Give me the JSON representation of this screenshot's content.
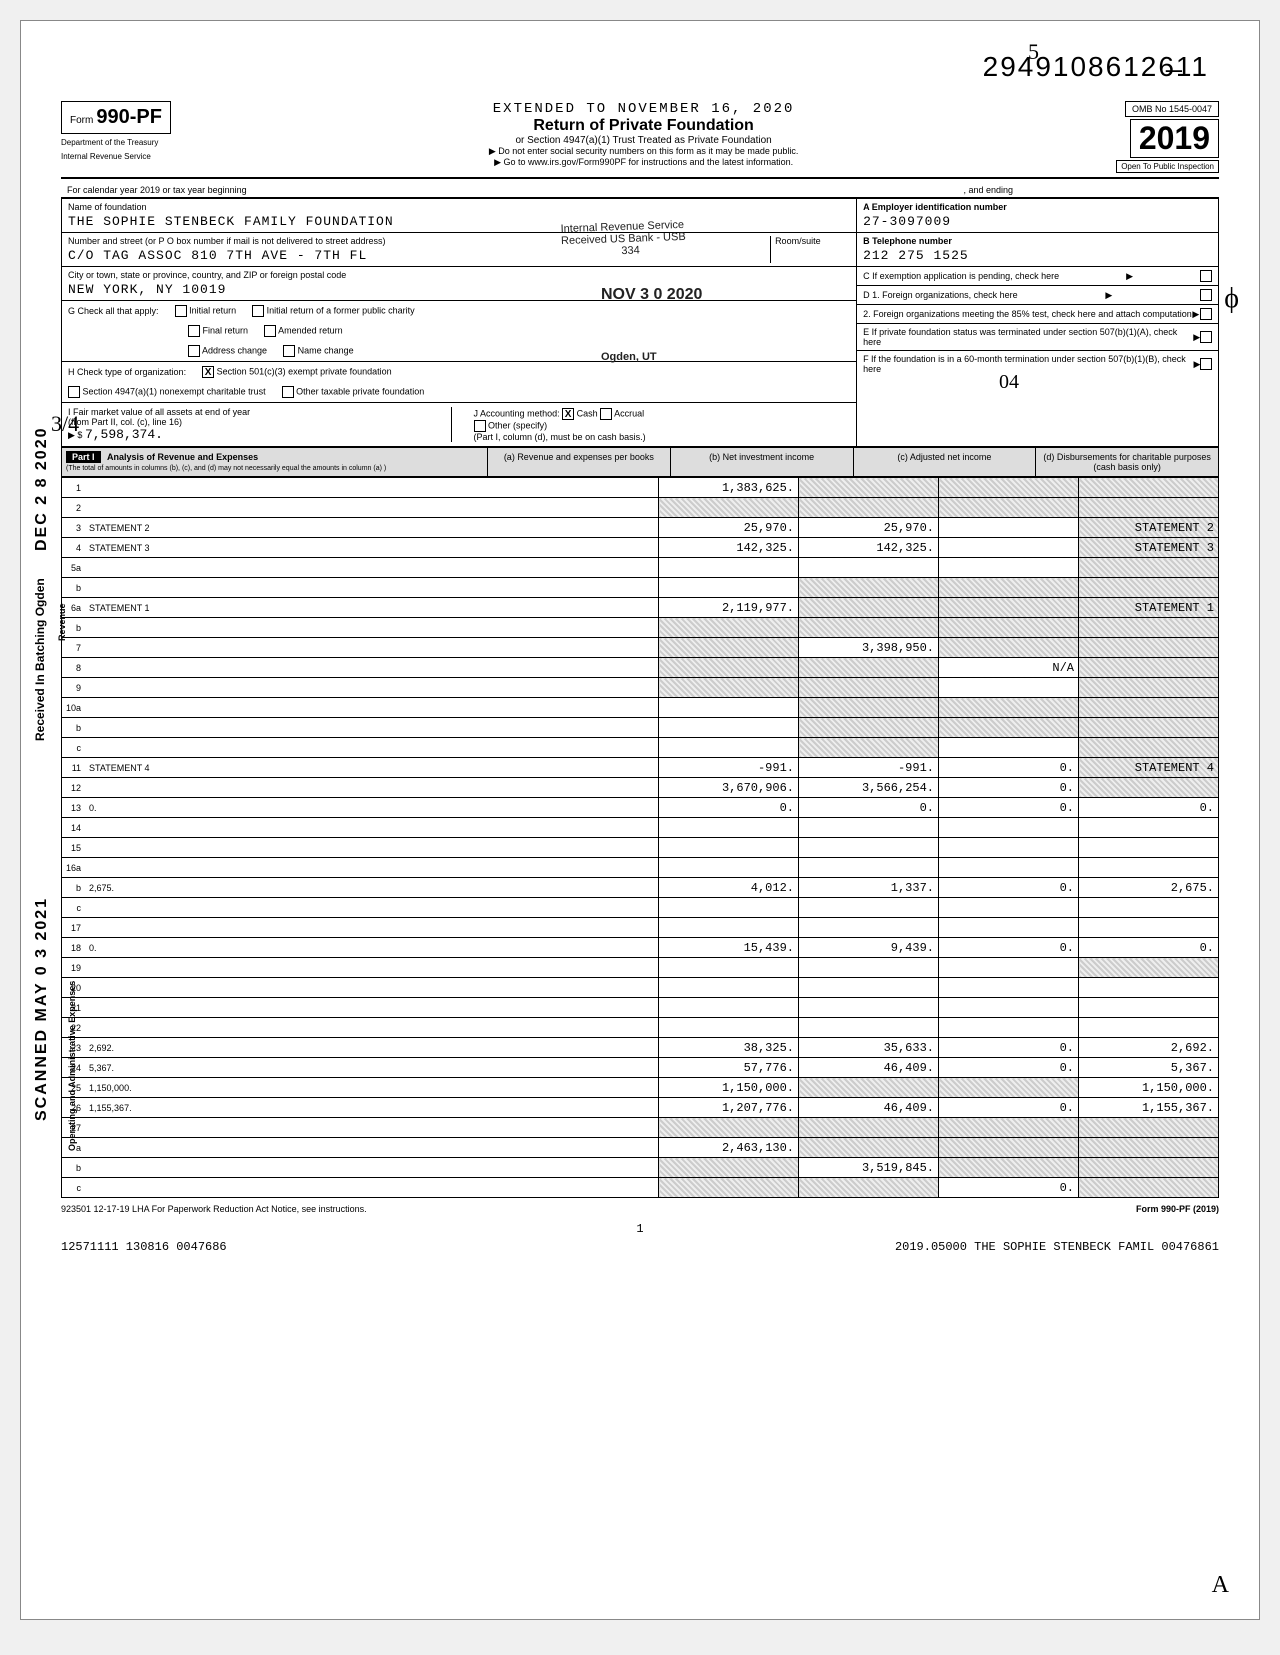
{
  "dln": "29491086126̶11",
  "ext_line": "EXTENDED TO NOVEMBER 16, 2020",
  "title": "Return of Private Foundation",
  "sub1": "or Section 4947(a)(1) Trust Treated as Private Foundation",
  "sub2": "▶ Do not enter social security numbers on this form as it may be made public.",
  "sub3": "▶ Go to www.irs.gov/Form990PF for instructions and the latest information.",
  "form_word": "Form",
  "form_num": "990-PF",
  "dept1": "Department of the Treasury",
  "dept2": "Internal Revenue Service",
  "omb": "OMB No  1545-0047",
  "year": "2019",
  "inspect": "Open To Public Inspection",
  "cal_line": "For calendar year 2019 or tax year beginning",
  "and_ending": ", and ending",
  "name_label": "Name of foundation",
  "name": "THE SOPHIE STENBECK FAMILY FOUNDATION",
  "addr_label": "Number and street (or P O box number if mail is not delivered to street address)",
  "addr": "C/O TAG ASSOC 810 7TH AVE - 7TH FL",
  "city_label": "City or town, state or province, country, and ZIP or foreign postal code",
  "city": "NEW YORK, NY    10019",
  "room_label": "Room/suite",
  "ein_label": "A  Employer identification number",
  "ein": "27-3097009",
  "phone_label": "B  Telephone number",
  "phone": "212 275 1525",
  "c_label": "C  If exemption application is pending, check here",
  "g_label": "G  Check all that apply:",
  "g_opts": [
    "Initial return",
    "Final return",
    "Address change",
    "Initial return of a former public charity",
    "Amended return",
    "Name change"
  ],
  "d1": "D  1. Foreign organizations, check here",
  "d2": "2. Foreign organizations meeting the 85% test, check here and attach computation",
  "h_label": "H  Check type of organization:",
  "h1": "Section 501(c)(3) exempt private foundation",
  "h2": "Section 4947(a)(1) nonexempt charitable trust",
  "h3": "Other taxable private foundation",
  "e_label": "E  If private foundation status was terminated under section 507(b)(1)(A), check here",
  "i_label": "I  Fair market value of all assets at end of year",
  "i_sub": "(from Part II, col. (c), line 16)",
  "i_val": "7,598,374.",
  "j_label": "J  Accounting method:",
  "j_cash": "Cash",
  "j_accrual": "Accrual",
  "j_other": "Other (specify)",
  "j_note": "(Part I, column (d), must be on cash basis.)",
  "f_label": "F  If the foundation is in a 60-month termination under section 507(b)(1)(B), check here",
  "part1_tag": "Part I",
  "part1_title": "Analysis of Revenue and Expenses",
  "part1_note": "(The total of amounts in columns (b), (c), and (d) may not necessarily equal the amounts in column (a) )",
  "col_a": "(a) Revenue and expenses per books",
  "col_b": "(b) Net investment income",
  "col_c": "(c) Adjusted net income",
  "col_d": "(d) Disbursements for charitable purposes (cash basis only)",
  "stamp_irs": "Internal Revenue Service",
  "stamp_rcv": "Received US Bank - USB",
  "stamp_334": "334",
  "stamp_date": "NOV 3 0 2020",
  "stamp_ogden": "Ogden, UT",
  "rows": [
    {
      "n": "1",
      "d": "",
      "a": "1,383,625.",
      "b": "",
      "c": "",
      "sa": false,
      "sb": true,
      "sc": true,
      "sd": true
    },
    {
      "n": "2",
      "d": "",
      "a": "",
      "b": "",
      "c": "",
      "sa": true,
      "sb": true,
      "sc": true,
      "sd": true
    },
    {
      "n": "3",
      "d": "STATEMENT  2",
      "a": "25,970.",
      "b": "25,970.",
      "c": "",
      "sa": false,
      "sb": false,
      "sc": false,
      "sd": true
    },
    {
      "n": "4",
      "d": "STATEMENT  3",
      "a": "142,325.",
      "b": "142,325.",
      "c": "",
      "sa": false,
      "sb": false,
      "sc": false,
      "sd": true
    },
    {
      "n": "5a",
      "d": "",
      "a": "",
      "b": "",
      "c": "",
      "sa": false,
      "sb": false,
      "sc": false,
      "sd": true
    },
    {
      "n": "b",
      "d": "",
      "a": "",
      "b": "",
      "c": "",
      "sa": false,
      "sb": true,
      "sc": true,
      "sd": true
    },
    {
      "n": "6a",
      "d": "STATEMENT  1",
      "a": "2,119,977.",
      "b": "",
      "c": "",
      "sa": false,
      "sb": true,
      "sc": true,
      "sd": true
    },
    {
      "n": "b",
      "d": "",
      "a": "",
      "b": "",
      "c": "",
      "sa": true,
      "sb": true,
      "sc": true,
      "sd": true
    },
    {
      "n": "7",
      "d": "",
      "a": "",
      "b": "3,398,950.",
      "c": "",
      "sa": true,
      "sb": false,
      "sc": true,
      "sd": true
    },
    {
      "n": "8",
      "d": "",
      "a": "",
      "b": "",
      "c": "N/A",
      "sa": true,
      "sb": true,
      "sc": false,
      "sd": true
    },
    {
      "n": "9",
      "d": "",
      "a": "",
      "b": "",
      "c": "",
      "sa": true,
      "sb": true,
      "sc": false,
      "sd": true
    },
    {
      "n": "10a",
      "d": "",
      "a": "",
      "b": "",
      "c": "",
      "sa": false,
      "sb": true,
      "sc": true,
      "sd": true
    },
    {
      "n": "b",
      "d": "",
      "a": "",
      "b": "",
      "c": "",
      "sa": false,
      "sb": true,
      "sc": true,
      "sd": true
    },
    {
      "n": "c",
      "d": "",
      "a": "",
      "b": "",
      "c": "",
      "sa": false,
      "sb": true,
      "sc": false,
      "sd": true
    },
    {
      "n": "11",
      "d": "STATEMENT  4",
      "a": "-991.",
      "b": "-991.",
      "c": "0.",
      "sa": false,
      "sb": false,
      "sc": false,
      "sd": true
    },
    {
      "n": "12",
      "d": "",
      "a": "3,670,906.",
      "b": "3,566,254.",
      "c": "0.",
      "sa": false,
      "sb": false,
      "sc": false,
      "sd": true
    },
    {
      "n": "13",
      "d": "0.",
      "a": "0.",
      "b": "0.",
      "c": "0."
    },
    {
      "n": "14",
      "d": "",
      "a": "",
      "b": "",
      "c": ""
    },
    {
      "n": "15",
      "d": "",
      "a": "",
      "b": "",
      "c": ""
    },
    {
      "n": "16a",
      "d": "",
      "a": "",
      "b": "",
      "c": ""
    },
    {
      "n": "b",
      "d": "2,675.",
      "a": "4,012.",
      "b": "1,337.",
      "c": "0."
    },
    {
      "n": "c",
      "d": "",
      "a": "",
      "b": "",
      "c": ""
    },
    {
      "n": "17",
      "d": "",
      "a": "",
      "b": "",
      "c": ""
    },
    {
      "n": "18",
      "d": "0.",
      "a": "15,439.",
      "b": "9,439.",
      "c": "0."
    },
    {
      "n": "19",
      "d": "",
      "a": "",
      "b": "",
      "c": "",
      "sd": true
    },
    {
      "n": "20",
      "d": "",
      "a": "",
      "b": "",
      "c": ""
    },
    {
      "n": "21",
      "d": "",
      "a": "",
      "b": "",
      "c": ""
    },
    {
      "n": "22",
      "d": "",
      "a": "",
      "b": "",
      "c": ""
    },
    {
      "n": "23",
      "d": "2,692.",
      "a": "38,325.",
      "b": "35,633.",
      "c": "0."
    },
    {
      "n": "24",
      "d": "5,367.",
      "a": "57,776.",
      "b": "46,409.",
      "c": "0."
    },
    {
      "n": "25",
      "d": "1,150,000.",
      "a": "1,150,000.",
      "b": "",
      "c": "",
      "sb": true,
      "sc": true
    },
    {
      "n": "26",
      "d": "1,155,367.",
      "a": "1,207,776.",
      "b": "46,409.",
      "c": "0."
    },
    {
      "n": "27",
      "d": "",
      "a": "",
      "b": "",
      "c": "",
      "sa": true,
      "sb": true,
      "sc": true,
      "sd": true
    },
    {
      "n": "a",
      "d": "",
      "a": "2,463,130.",
      "b": "",
      "c": "",
      "sb": true,
      "sc": true,
      "sd": true
    },
    {
      "n": "b",
      "d": "",
      "a": "",
      "b": "3,519,845.",
      "c": "",
      "sa": true,
      "sc": true,
      "sd": true
    },
    {
      "n": "c",
      "d": "",
      "a": "",
      "b": "",
      "c": "0.",
      "sa": true,
      "sb": true,
      "sd": true
    }
  ],
  "side_date": "DEC 2 8 2020",
  "side_rcv": "Received In Batching Ogden",
  "side_scan": "SCANNED MAY 0 3 2021",
  "side_rev": "Revenue",
  "side_ope": "Operating and Administrative Expenses",
  "foot_left": "923501  12-17-19   LHA  For Paperwork Reduction Act Notice, see instructions.",
  "foot_right": "Form 990-PF (2019)",
  "foot_page": "1",
  "foot_ctrl_l": "12571111 130816 0047686",
  "foot_ctrl_r": "2019.05000 THE SOPHIE STENBECK FAMIL 00476861",
  "hw1": "3/4",
  "hw2": "ϕ",
  "hw3": "A",
  "hw4": "04",
  "hw5": "5"
}
